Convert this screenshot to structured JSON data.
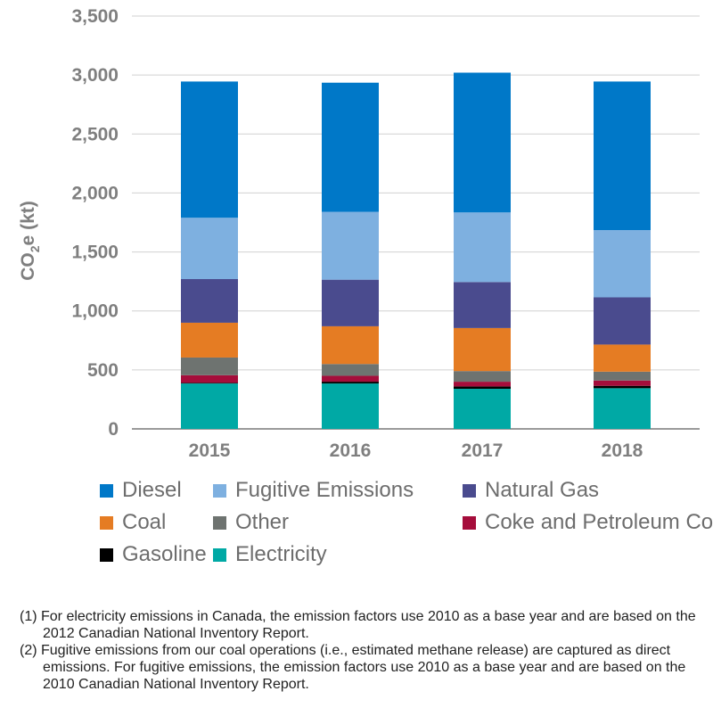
{
  "chart_data": {
    "type": "bar",
    "stacked": true,
    "categories": [
      "2015",
      "2016",
      "2017",
      "2018"
    ],
    "ylabel_main": "CO",
    "ylabel_sub": "2",
    "ylabel_rest": "e (kt)",
    "ylim": [
      0,
      3500
    ],
    "yticks": [
      0,
      500,
      1000,
      1500,
      2000,
      2500,
      3000,
      3500
    ],
    "ytick_labels": [
      "0",
      "500",
      "1,000",
      "1,500",
      "2,000",
      "2,500",
      "3,000",
      "3,500"
    ],
    "grid": "horizontal",
    "legend_placement": "bottom",
    "series": [
      {
        "name": "Electricity",
        "color": "#00a9a5",
        "values": [
          385,
          385,
          340,
          345
        ]
      },
      {
        "name": "Gasoline",
        "color": "#000000",
        "values": [
          5,
          15,
          20,
          20
        ]
      },
      {
        "name": "Coke and Petroleum Coke",
        "color": "#a50d3b",
        "values": [
          65,
          50,
          40,
          45
        ]
      },
      {
        "name": "Other",
        "color": "#6e7370",
        "values": [
          150,
          100,
          90,
          75
        ]
      },
      {
        "name": "Coal",
        "color": "#e57c23",
        "values": [
          295,
          320,
          365,
          230
        ]
      },
      {
        "name": "Natural Gas",
        "color": "#4a4b8e",
        "values": [
          370,
          395,
          390,
          400
        ]
      },
      {
        "name": "Fugitive Emissions",
        "color": "#7eb0e0",
        "values": [
          520,
          575,
          590,
          570
        ]
      },
      {
        "name": "Diesel",
        "color": "#0078c8",
        "values": [
          1155,
          1095,
          1185,
          1260
        ]
      }
    ]
  },
  "legend_order": [
    [
      "Diesel",
      "Fugitive Emissions",
      "Natural Gas"
    ],
    [
      "Coal",
      "Other",
      "Coke and Petroleum Coke"
    ],
    [
      "Gasoline",
      "Electricity"
    ]
  ],
  "notes": [
    "(1) For electricity emissions in Canada, the emission factors use 2010 as a base year and are based on the 2012 Canadian National Inventory Report.",
    "(2) Fugitive emissions from our coal operations (i.e., estimated methane release) are captured as direct emissions. For fugitive emissions, the emission factors use 2010 as a base year and are based on the 2010 Canadian National Inventory Report."
  ]
}
